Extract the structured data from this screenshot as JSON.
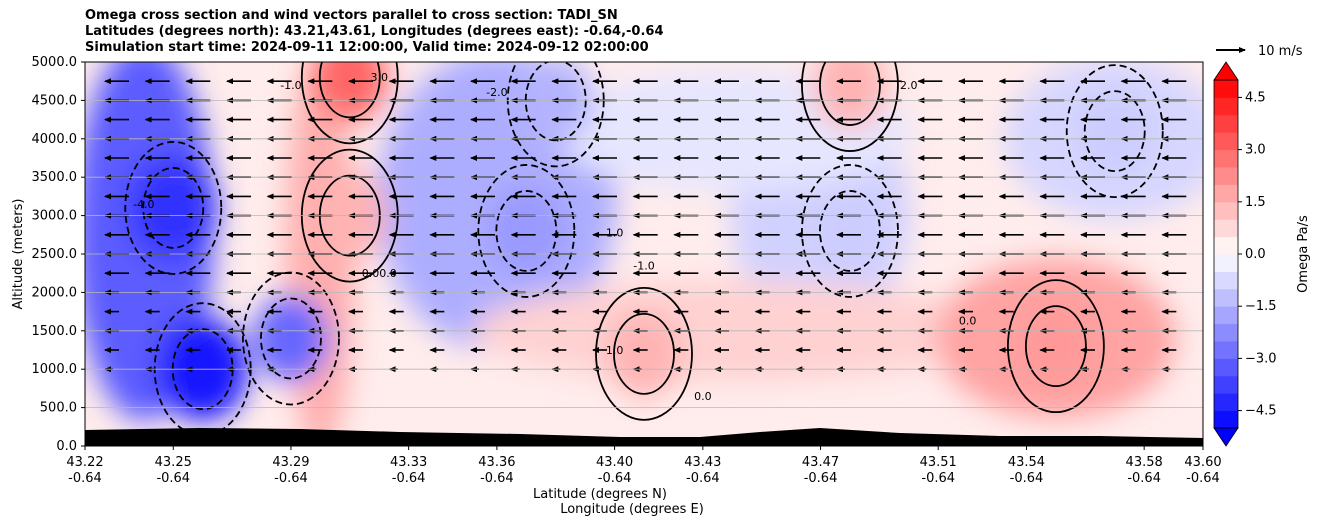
{
  "title_lines": [
    "Omega cross section and wind vectors parallel to cross section: TADI_SN",
    "Latitudes (degrees north): 43.21,43.61, Longitudes (degrees east): -0.64,-0.64",
    "Simulation start time: 2024-09-11 12:00:00, Valid time: 2024-09-12 02:00:00"
  ],
  "vector_key": "10 m/s",
  "chart_data": {
    "type": "heatmap",
    "subtype": "filled contour cross section with wind vectors",
    "xlabel_lines": [
      "Latitude (degrees N)",
      "Longitude (degrees E)"
    ],
    "ylabel": "Altitude (meters)",
    "colorbar_label": "Omega Pa/s",
    "xtick_lat": [
      "43.22",
      "43.25",
      "43.29",
      "43.33",
      "43.36",
      "43.40",
      "43.43",
      "43.47",
      "43.51",
      "43.54",
      "43.58",
      "43.60"
    ],
    "xtick_lon": [
      "-0.64",
      "-0.64",
      "-0.64",
      "-0.64",
      "-0.64",
      "-0.64",
      "-0.64",
      "-0.64",
      "-0.64",
      "-0.64",
      "-0.64",
      "-0.64"
    ],
    "x_values": [
      43.22,
      43.25,
      43.29,
      43.33,
      43.36,
      43.4,
      43.43,
      43.47,
      43.51,
      43.54,
      43.58,
      43.6
    ],
    "yticks": [
      "0.0",
      "500.0",
      "1000.0",
      "1500.0",
      "2000.0",
      "2500.0",
      "3000.0",
      "3500.0",
      "4000.0",
      "4500.0",
      "5000.0"
    ],
    "ylim": [
      0,
      5000
    ],
    "colorbar_ticks": [
      "4.5",
      "3.0",
      "1.5",
      "0.0",
      "−1.5",
      "−3.0",
      "−4.5"
    ],
    "colorbar_range": [
      -5,
      5
    ],
    "colors": {
      "negative": "#0000ff",
      "positive": "#ff0000",
      "neutral": "#ffffff",
      "terrain": "#000000"
    },
    "contour_labels": [
      "-2.0",
      "-1.0",
      "0.0",
      "1.0",
      "2.0",
      "3.0",
      "-4.0",
      "0.00.0"
    ],
    "features": [
      {
        "kind": "negative",
        "label": "-4.5",
        "lat": 43.26,
        "alt": 1000
      },
      {
        "kind": "negative",
        "label": "-4.0",
        "lat": 43.25,
        "alt": 3100
      },
      {
        "kind": "negative",
        "label": "-3.0",
        "lat": 43.29,
        "alt": 1400
      },
      {
        "kind": "negative",
        "label": "-2.0",
        "lat": 43.37,
        "alt": 2800
      },
      {
        "kind": "negative",
        "label": "-1.0",
        "lat": 43.48,
        "alt": 2800
      },
      {
        "kind": "negative",
        "label": "-1.0",
        "lat": 43.57,
        "alt": 4100
      },
      {
        "kind": "negative",
        "label": "-1.5",
        "lat": 43.38,
        "alt": 4500
      },
      {
        "kind": "positive",
        "label": "3.0",
        "lat": 43.31,
        "alt": 4800
      },
      {
        "kind": "positive",
        "label": "1.5",
        "lat": 43.31,
        "alt": 3000
      },
      {
        "kind": "positive",
        "label": "1.5",
        "lat": 43.41,
        "alt": 1200
      },
      {
        "kind": "positive",
        "label": "2.0",
        "lat": 43.55,
        "alt": 1300
      },
      {
        "kind": "positive",
        "label": "1.5",
        "lat": 43.48,
        "alt": 4700
      }
    ],
    "grid": true
  }
}
